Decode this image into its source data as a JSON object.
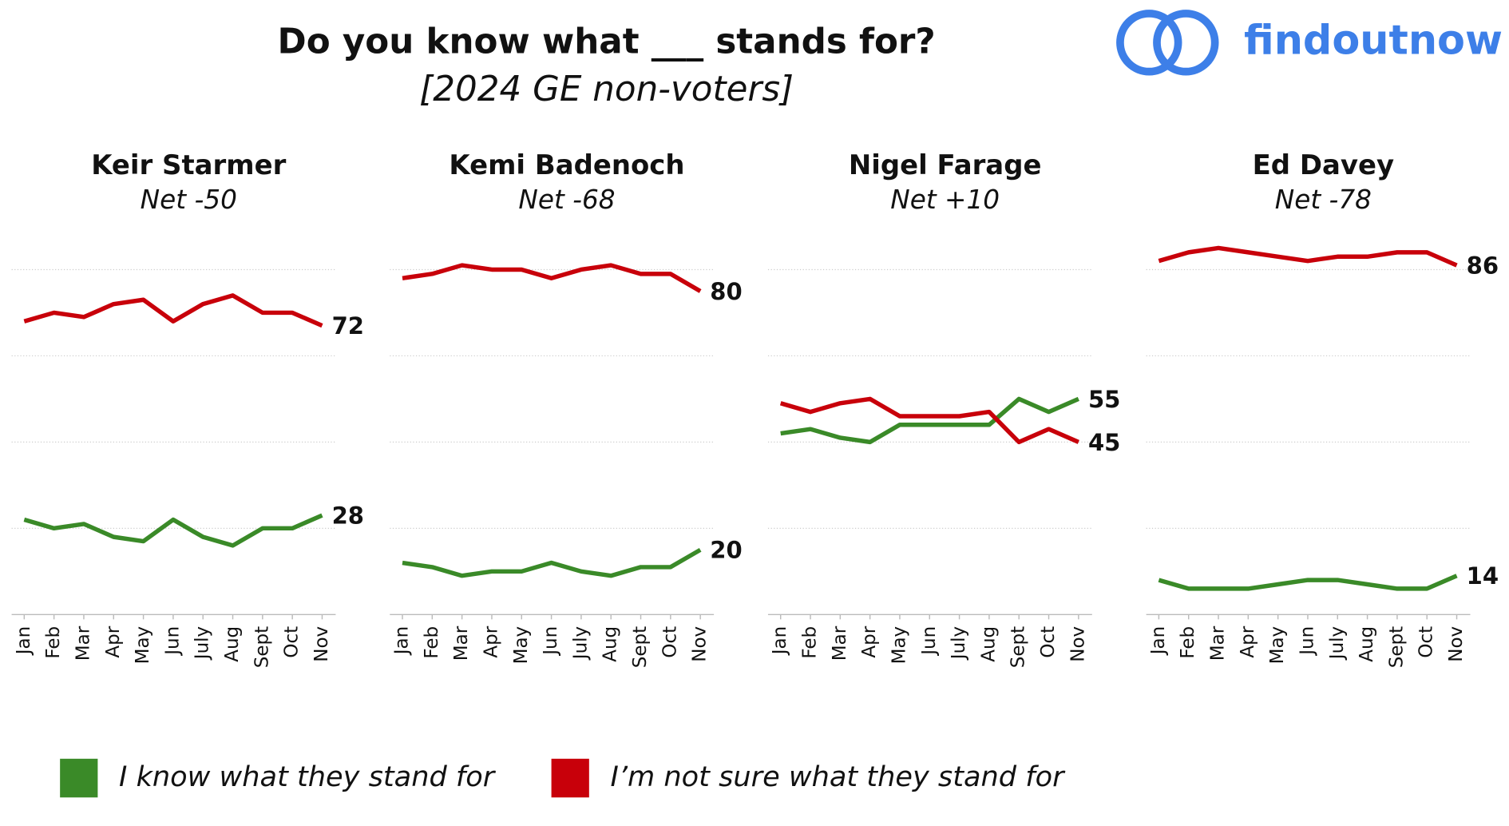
{
  "header": {
    "title": "Do you know what ___ stands for?",
    "subtitle": "[2024 GE non-voters]",
    "logo": "findoutnow"
  },
  "chart_data": [
    {
      "type": "line",
      "title": "Keir Starmer",
      "subtitle": "Net -50",
      "categories": [
        "Jan",
        "Feb",
        "Mar",
        "Apr",
        "May",
        "Jun",
        "July",
        "Aug",
        "Sept",
        "Oct",
        "Nov"
      ],
      "series": [
        {
          "name": "I know what they stand for",
          "color": "#3a8a28",
          "values": [
            27,
            25,
            26,
            23,
            22,
            27,
            23,
            21,
            25,
            25,
            28
          ]
        },
        {
          "name": "I’m not sure what they stand for",
          "color": "#c8000a",
          "values": [
            73,
            75,
            74,
            77,
            78,
            73,
            77,
            79,
            75,
            75,
            72
          ]
        }
      ],
      "ylim": [
        5,
        95
      ],
      "yticks": [
        5,
        25,
        45,
        65,
        85
      ],
      "grid": true
    },
    {
      "type": "line",
      "title": "Kemi Badenoch",
      "subtitle": "Net -68",
      "categories": [
        "Jan",
        "Feb",
        "Mar",
        "Apr",
        "May",
        "Jun",
        "July",
        "Aug",
        "Sept",
        "Oct",
        "Nov"
      ],
      "series": [
        {
          "color": "#3a8a28",
          "values": [
            17,
            16,
            14,
            15,
            15,
            17,
            15,
            14,
            16,
            16,
            20
          ]
        },
        {
          "color": "#c8000a",
          "values": [
            83,
            84,
            86,
            85,
            85,
            83,
            85,
            86,
            84,
            84,
            80
          ]
        }
      ],
      "ylim": [
        5,
        95
      ],
      "yticks": [
        5,
        25,
        45,
        65,
        85
      ],
      "grid": true
    },
    {
      "type": "line",
      "title": "Nigel Farage",
      "subtitle": "Net +10",
      "categories": [
        "Jan",
        "Feb",
        "Mar",
        "Apr",
        "May",
        "Jun",
        "July",
        "Aug",
        "Sept",
        "Oct",
        "Nov"
      ],
      "series": [
        {
          "color": "#3a8a28",
          "values": [
            47,
            48,
            46,
            45,
            49,
            49,
            49,
            49,
            55,
            52,
            55
          ]
        },
        {
          "color": "#c8000a",
          "values": [
            54,
            52,
            54,
            55,
            51,
            51,
            51,
            52,
            45,
            48,
            45
          ]
        }
      ],
      "ylim": [
        5,
        95
      ],
      "yticks": [
        5,
        25,
        45,
        65,
        85
      ],
      "grid": true
    },
    {
      "type": "line",
      "title": "Ed Davey",
      "subtitle": "Net -78",
      "categories": [
        "Jan",
        "Feb",
        "Mar",
        "Apr",
        "May",
        "Jun",
        "July",
        "Aug",
        "Sept",
        "Oct",
        "Nov"
      ],
      "series": [
        {
          "color": "#3a8a28",
          "values": [
            13,
            11,
            11,
            11,
            12,
            13,
            13,
            12,
            11,
            11,
            14
          ]
        },
        {
          "color": "#c8000a",
          "values": [
            87,
            89,
            90,
            89,
            88,
            87,
            88,
            88,
            89,
            89,
            86
          ]
        }
      ],
      "ylim": [
        5,
        95
      ],
      "yticks": [
        5,
        25,
        45,
        65,
        85
      ],
      "grid": true
    }
  ]
}
